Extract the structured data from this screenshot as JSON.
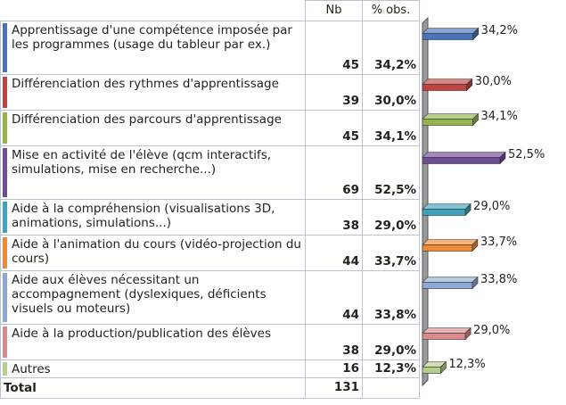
{
  "table": {
    "col_nb": "Nb",
    "col_pct": "% obs.",
    "rows": [
      {
        "label": "Apprentissage d'une compétence imposée par les programmes (usage du tableur par ex.)",
        "nb": "45",
        "pct": "34,2%",
        "color": "#4a73b8"
      },
      {
        "label": "Différenciation des rythmes d'apprentissage",
        "nb": "39",
        "pct": "30,0%",
        "color": "#c0433f"
      },
      {
        "label": "Différenciation des parcours d'apprentissage",
        "nb": "45",
        "pct": "34,1%",
        "color": "#95b54a"
      },
      {
        "label": "Mise en activité de l'élève (qcm interactifs, simulations, mise en recherche...)",
        "nb": "69",
        "pct": "52,5%",
        "color": "#6e4c97"
      },
      {
        "label": "Aide à la compréhension (visualisations 3D, animations, simulations...)",
        "nb": "38",
        "pct": "29,0%",
        "color": "#3ea3bd"
      },
      {
        "label": "Aide à l'animation du cours (vidéo-projection du cours)",
        "nb": "44",
        "pct": "33,7%",
        "color": "#f08b33"
      },
      {
        "label": "Aide aux élèves nécessitant un accompagnement (dyslexiques, déficients visuels ou moteurs)",
        "nb": "44",
        "pct": "33,8%",
        "color": "#8fa9d6"
      },
      {
        "label": "Aide à la production/publication des élèves",
        "nb": "38",
        "pct": "29,0%",
        "color": "#d98a8a"
      },
      {
        "label": "Autres",
        "nb": "16",
        "pct": "12,3%",
        "color": "#b3cf8a"
      }
    ],
    "total_label": "Total",
    "total_nb": "131"
  },
  "chart_data": {
    "type": "bar",
    "orientation": "horizontal",
    "categories": [
      "Apprentissage d'une compétence imposée par les programmes (usage du tableur par ex.)",
      "Différenciation des rythmes d'apprentissage",
      "Différenciation des parcours d'apprentissage",
      "Mise en activité de l'élève (qcm interactifs, simulations, mise en recherche...)",
      "Aide à la compréhension (visualisations 3D, animations, simulations...)",
      "Aide à l'animation du cours (vidéo-projection du cours)",
      "Aide aux élèves nécessitant un accompagnement (dyslexiques, déficients visuels ou moteurs)",
      "Aide à la production/publication des élèves",
      "Autres"
    ],
    "values": [
      34.2,
      30.0,
      34.1,
      52.5,
      29.0,
      33.7,
      33.8,
      29.0,
      12.3
    ],
    "data_labels": [
      "34,2%",
      "30,0%",
      "34,1%",
      "52,5%",
      "29,0%",
      "33,7%",
      "33,8%",
      "29,0%",
      "12,3%"
    ],
    "colors": [
      "#4a73b8",
      "#c0433f",
      "#95b54a",
      "#6e4c97",
      "#3ea3bd",
      "#f08b33",
      "#8fa9d6",
      "#d98a8a",
      "#b3cf8a"
    ],
    "xlim": [
      0,
      52.5
    ],
    "grid": false,
    "style": "3d"
  }
}
